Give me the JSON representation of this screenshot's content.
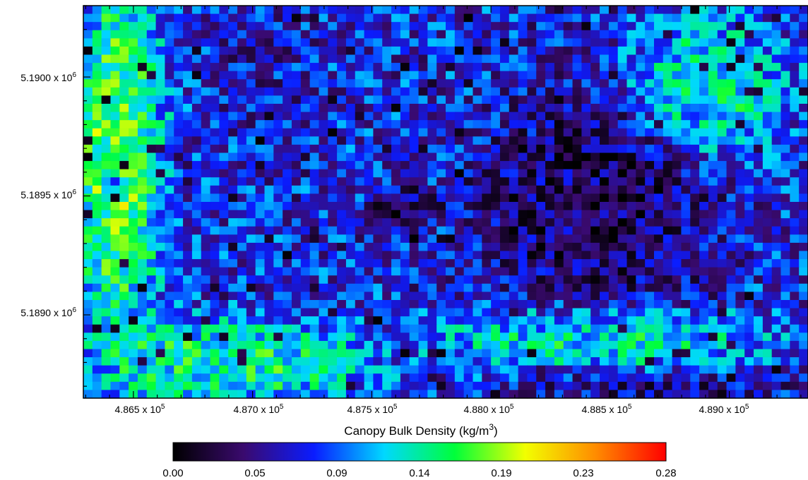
{
  "chart_data": {
    "type": "heatmap",
    "title": "",
    "xlabel": "",
    "ylabel": "",
    "x_ticks": [
      {
        "value": 486500,
        "mantissa": "4.865",
        "exp": "5"
      },
      {
        "value": 487000,
        "mantissa": "4.870",
        "exp": "5"
      },
      {
        "value": 487500,
        "mantissa": "4.875",
        "exp": "5"
      },
      {
        "value": 488000,
        "mantissa": "4.880",
        "exp": "5"
      },
      {
        "value": 488500,
        "mantissa": "4.885",
        "exp": "5"
      },
      {
        "value": 489000,
        "mantissa": "4.890",
        "exp": "5"
      }
    ],
    "y_ticks": [
      {
        "value": 5190000,
        "mantissa": "5.1900",
        "exp": "6"
      },
      {
        "value": 5189500,
        "mantissa": "5.1895",
        "exp": "6"
      },
      {
        "value": 5189000,
        "mantissa": "5.1890",
        "exp": "6"
      }
    ],
    "x_range": [
      486290,
      489330
    ],
    "y_range": [
      5188650,
      5190300
    ],
    "grid_cols": 80,
    "grid_rows": 48,
    "colorbar": {
      "title_main": "Canopy Bulk Density (kg/m",
      "title_sup": "3",
      "title_close": ")",
      "range": [
        0,
        0.28
      ],
      "tick_labels": [
        "0.00",
        "0.05",
        "0.09",
        "0.14",
        "0.19",
        "0.23",
        "0.28"
      ],
      "colors": [
        "#000000",
        "#3a0a6e",
        "#0a1cff",
        "#00d8ff",
        "#00ff3a",
        "#f2ff00",
        "#ff8c00",
        "#ff0000"
      ]
    },
    "regions": [
      {
        "name": "west-dense-band",
        "center": [
          486430,
          5189650
        ],
        "radius": [
          180,
          700
        ],
        "value": 0.2
      },
      {
        "name": "west-dark-spot",
        "center": [
          486450,
          5189550
        ],
        "radius": [
          60,
          40
        ],
        "value": 0.02
      },
      {
        "name": "southwest-green",
        "center": [
          486900,
          5188800
        ],
        "radius": [
          520,
          170
        ],
        "value": 0.17
      },
      {
        "name": "north-blue-stripe",
        "center": [
          487050,
          5190000
        ],
        "radius": [
          230,
          260
        ],
        "value": 0.06
      },
      {
        "name": "center-dark-patch",
        "center": [
          487650,
          5189450
        ],
        "radius": [
          140,
          80
        ],
        "value": 0.01
      },
      {
        "name": "east-dark-region",
        "center": [
          488450,
          5189450
        ],
        "radius": [
          480,
          480
        ],
        "value": 0.02
      },
      {
        "name": "south-green-strip",
        "center": [
          488450,
          5188900
        ],
        "radius": [
          650,
          130
        ],
        "value": 0.16
      },
      {
        "name": "northeast-green",
        "center": [
          488900,
          5189950
        ],
        "radius": [
          300,
          280
        ],
        "value": 0.16
      },
      {
        "name": "south-dark-edge",
        "center": [
          488700,
          5188700
        ],
        "radius": [
          600,
          70
        ],
        "value": 0.04
      }
    ]
  }
}
